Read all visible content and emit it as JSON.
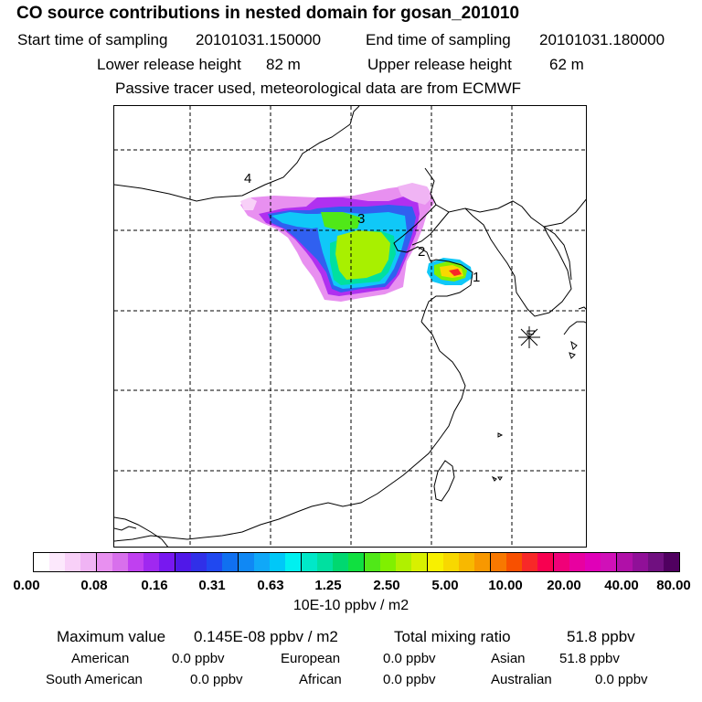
{
  "title": "CO  source contributions in nested domain for gosan_201010",
  "sampling": {
    "start_label": "Start time of sampling",
    "start_value": "20101031.150000",
    "end_label": "End time of sampling",
    "end_value": "20101031.180000"
  },
  "release": {
    "lower_label": "Lower release height",
    "lower_value": "82 m",
    "upper_label": "Upper release height",
    "upper_value": "62 m"
  },
  "note": "Passive tracer used, meteorological data are from ECMWF",
  "map": {
    "markers": [
      "1",
      "2",
      "3",
      "4"
    ],
    "receptor_icon": "star-receptor-icon"
  },
  "colorbar": {
    "tick_labels": [
      "0.00",
      "0.08",
      "0.16",
      "0.31",
      "0.63",
      "1.25",
      "2.50",
      "5.00",
      "10.00",
      "20.00",
      "40.00",
      "80.00"
    ],
    "units": "10E-10 ppbv / m2",
    "colors": [
      "#ffffff",
      "#fce8fc",
      "#f8d0f8",
      "#f0b4f4",
      "#e890f0",
      "#d870ec",
      "#c040f0",
      "#a028f0",
      "#7818f0",
      "#5018e8",
      "#3030e8",
      "#2048f0",
      "#1070f0",
      "#1088f4",
      "#10a8f8",
      "#00c8f8",
      "#00f0f0",
      "#00e8c8",
      "#00e0a0",
      "#00d870",
      "#10e040",
      "#50e818",
      "#80f000",
      "#b0f000",
      "#d8f000",
      "#f8f000",
      "#f8d800",
      "#f8b800",
      "#f89800",
      "#f87800",
      "#f85000",
      "#f82828",
      "#f80050",
      "#f00078",
      "#e800a0",
      "#e000b8",
      "#d010b8",
      "#b010a8",
      "#901098",
      "#701080",
      "#500060"
    ],
    "divider_indices": [
      3,
      8,
      12,
      16,
      20,
      24,
      28,
      32,
      36
    ]
  },
  "summary": {
    "max_label": "Maximum value",
    "max_value": "0.145E-08 ppbv / m2",
    "total_label": "Total mixing ratio",
    "total_value": "51.8 ppbv"
  },
  "regions": [
    {
      "label": "American",
      "value": "0.0 ppbv"
    },
    {
      "label": "European",
      "value": "0.0 ppbv"
    },
    {
      "label": "Asian",
      "value": "51.8 ppbv"
    },
    {
      "label": "South American",
      "value": "0.0 ppbv"
    },
    {
      "label": "African",
      "value": "0.0 ppbv"
    },
    {
      "label": "Australian",
      "value": "0.0 ppbv"
    }
  ]
}
